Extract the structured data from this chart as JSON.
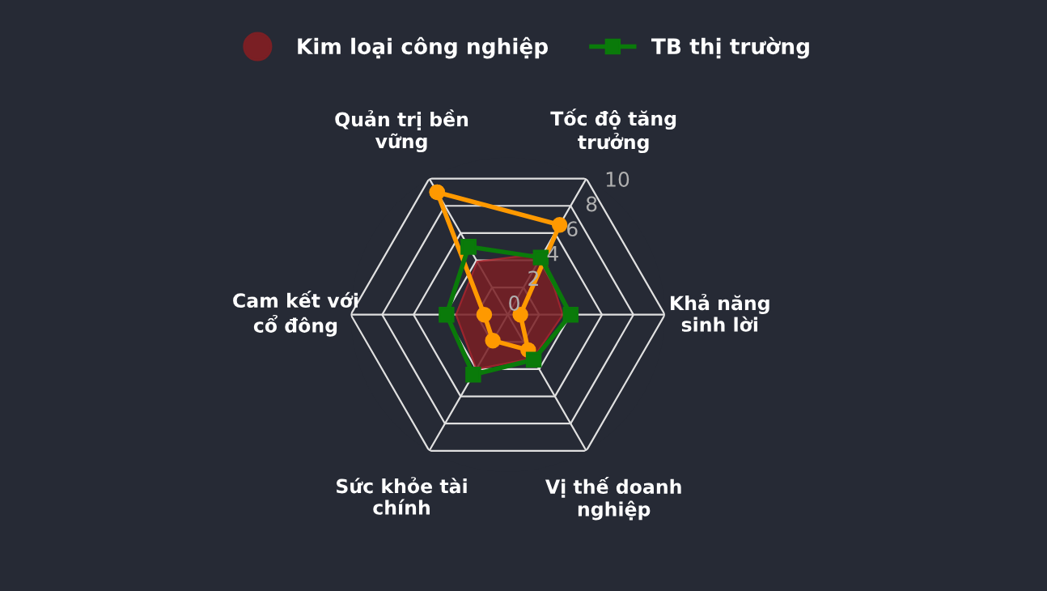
{
  "chart_data": {
    "type": "radar",
    "categories": [
      "Quản trị bền\nvững",
      "Tốc độ tăng\ntrưởng",
      "Khả năng\nsinh lời",
      "Vị thế doanh\nnghiệp",
      "Sức khỏe tài\nchính",
      "Cam kết với\ncổ đông"
    ],
    "series": [
      {
        "color": "#ff9900",
        "values": [
          9.0,
          6.6,
          0.8,
          2.6,
          1.9,
          1.5
        ]
      },
      {
        "type": "area",
        "name": "Kim loại công nghiệp",
        "color": "#7a1f24",
        "values": [
          3.9,
          4.5,
          3.5,
          3.2,
          4.0,
          3.3
        ]
      },
      {
        "name": "TB thị trường",
        "color": "#0a7a0a",
        "values": [
          5.0,
          4.2,
          4.0,
          3.3,
          4.4,
          3.9
        ]
      }
    ],
    "ylim": [
      0,
      10
    ],
    "yticks": [
      0,
      2,
      4,
      6,
      8,
      10
    ],
    "grid": true,
    "legend": "top"
  }
}
